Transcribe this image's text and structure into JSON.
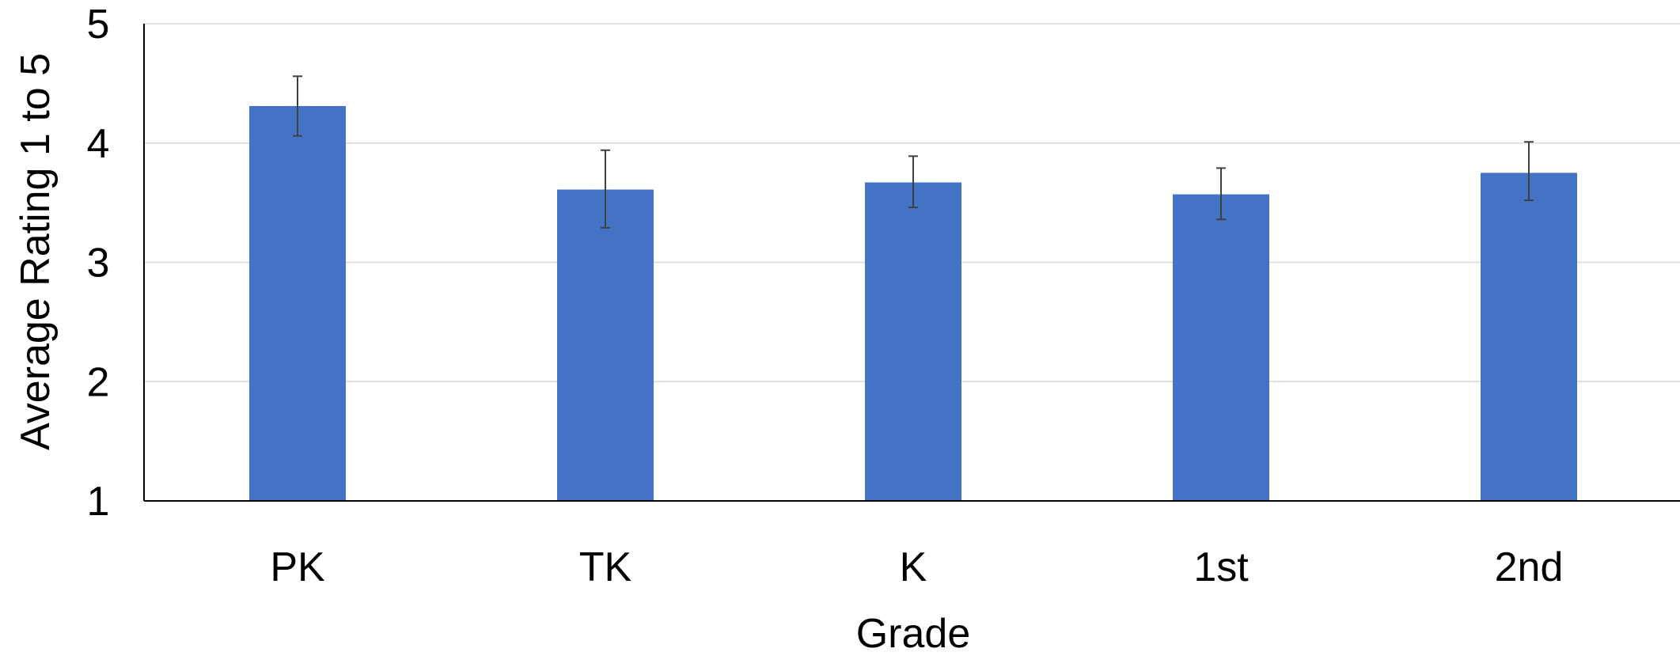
{
  "chart_data": {
    "type": "bar",
    "title": "",
    "xlabel": "Grade",
    "ylabel": "Average Rating 1 to 5",
    "categories": [
      "PK",
      "TK",
      "K",
      "1st",
      "2nd"
    ],
    "values": [
      4.31,
      3.61,
      3.67,
      3.57,
      3.75
    ],
    "error_bars": [
      {
        "low": 4.06,
        "high": 4.56
      },
      {
        "low": 3.29,
        "high": 3.94
      },
      {
        "low": 3.46,
        "high": 3.89
      },
      {
        "low": 3.36,
        "high": 3.79
      },
      {
        "low": 3.52,
        "high": 4.01
      }
    ],
    "ylim": [
      1,
      5
    ],
    "yticks": [
      "1",
      "2",
      "3",
      "4",
      "5"
    ],
    "grid": true,
    "legend": "none",
    "colors": {
      "bar": "#4472C4",
      "grid": "#D9D9D9",
      "axis": "#000000",
      "error_bar": "#404040"
    }
  }
}
